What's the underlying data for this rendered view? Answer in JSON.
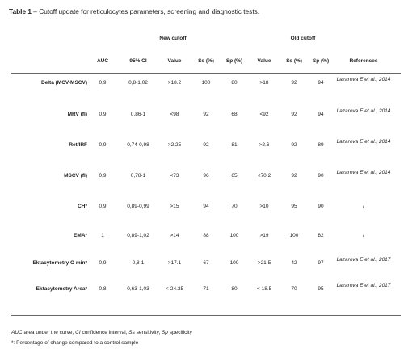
{
  "caption": {
    "label": "Table 1",
    "text": " – Cutoff update for reticulocytes parameters, screening and diagnostic tests."
  },
  "groups": {
    "new": "New cutoff",
    "old": "Old cutoff"
  },
  "headers": [
    "AUC",
    "95% CI",
    "Value",
    "Ss (%)",
    "Sp (%)",
    "Value",
    "Ss (%)",
    "Sp (%)",
    "References"
  ],
  "rows": [
    {
      "label": "Delta (MCV-MSCV)",
      "auc": "0,9",
      "ci": "0,8-1,02",
      "new_value": ">18.2",
      "new_ss": "100",
      "new_sp": "80",
      "old_value": ">18",
      "old_ss": "92",
      "old_sp": "94",
      "ref": "Lazarova E et al., 2014"
    },
    {
      "label": "MRV (fl)",
      "auc": "0,9",
      "ci": "0,86-1",
      "new_value": "<98",
      "new_ss": "92",
      "new_sp": "68",
      "old_value": "<92",
      "old_ss": "92",
      "old_sp": "94",
      "ref": "Lazarova E et al., 2014"
    },
    {
      "label": "Ret/IRF",
      "auc": "0,9",
      "ci": "0,74-0,98",
      "new_value": ">2.25",
      "new_ss": "92",
      "new_sp": "81",
      "old_value": ">2.6",
      "old_ss": "92",
      "old_sp": "89",
      "ref": "Lazarova E et al., 2014"
    },
    {
      "label": "MSCV (fl)",
      "auc": "0,9",
      "ci": "0,78-1",
      "new_value": "<73",
      "new_ss": "96",
      "new_sp": "65",
      "old_value": "<70.2",
      "old_ss": "92",
      "old_sp": "90",
      "ref": "Lazarova E et al., 2014"
    },
    {
      "label": "CH*",
      "auc": "0,9",
      "ci": "0,89-0,99",
      "new_value": ">15",
      "new_ss": "94",
      "new_sp": "70",
      "old_value": ">10",
      "old_ss": "95",
      "old_sp": "90",
      "ref": "/"
    },
    {
      "label": "EMA*",
      "auc": "1",
      "ci": "0,89-1,02",
      "new_value": ">14",
      "new_ss": "88",
      "new_sp": "100",
      "old_value": ">19",
      "old_ss": "100",
      "old_sp": "82",
      "ref": "/"
    },
    {
      "label": "Ektacytometry O min*",
      "auc": "0,9",
      "ci": "0,8-1",
      "new_value": ">17.1",
      "new_ss": "67",
      "new_sp": "100",
      "old_value": ">21.5",
      "old_ss": "42",
      "old_sp": "97",
      "ref": "Lazarova E et al., 2017"
    },
    {
      "label": "Ektacytometry Area*",
      "auc": "0,8",
      "ci": "0,63-1,03",
      "new_value": "<-24.35",
      "new_ss": "71",
      "new_sp": "80",
      "old_value": "<-18.5",
      "old_ss": "70",
      "old_sp": "95",
      "ref": "Lazarova E et al., 2017"
    }
  ],
  "footnotes": {
    "abbr_parts": [
      {
        "t": "AUC",
        "i": true
      },
      {
        "t": " area under the curve, ",
        "i": false
      },
      {
        "t": "CI",
        "i": true
      },
      {
        "t": " confidence interval, ",
        "i": false
      },
      {
        "t": "Ss",
        "i": true
      },
      {
        "t": " sensitivity, ",
        "i": false
      },
      {
        "t": "Sp",
        "i": true
      },
      {
        "t": " specificity",
        "i": false
      }
    ],
    "asterisk": "*: Percentage of change compared to a control sample"
  }
}
